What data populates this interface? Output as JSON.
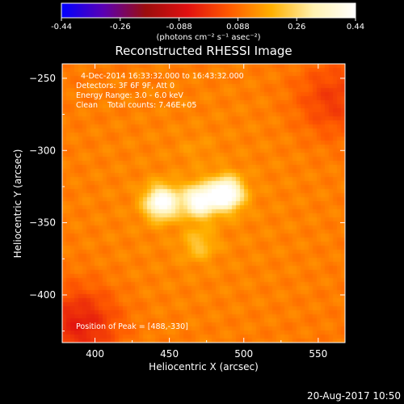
{
  "chart_data": {
    "type": "heatmap",
    "title": "Reconstructed RHESSI Image",
    "xlabel": "Heliocentric X (arcsec)",
    "ylabel": "Heliocentric Y (arcsec)",
    "xlim": [
      378,
      568
    ],
    "ylim": [
      -433,
      -240
    ],
    "xticks": [
      400,
      450,
      500,
      550
    ],
    "yticks": [
      -250,
      -300,
      -350,
      -400
    ],
    "grid": false,
    "colorbar": {
      "orientation": "horizontal",
      "position": "top",
      "ticks": [
        "-0.44",
        "-0.26",
        "-0.088",
        "0.088",
        "0.26",
        "0.44"
      ],
      "min": -0.44,
      "max": 0.44,
      "unit_label": "(photons cm⁻² s⁻¹ asec⁻²)",
      "colormap_stops": [
        "#0000ff",
        "#5a00b4",
        "#9b0d0d",
        "#e01010",
        "#ff5a00",
        "#ffb000",
        "#fff2b0",
        "#ffffff"
      ]
    },
    "annotations": [
      "4-Dec-2014 16:33:32.000 to 16:43:32.000",
      "Detectors: 3F 6F 9F, Att 0",
      "Energy Range: 3.0 - 6.0 keV",
      "Clean    Total counts: 7.46E+05",
      "Position of Peak = [488,-330]"
    ],
    "sources": [
      {
        "x": 445,
        "y": -336,
        "peak": 0.4
      },
      {
        "x": 470,
        "y": -335,
        "peak": 0.38
      },
      {
        "x": 488,
        "y": -330,
        "peak": 0.44
      },
      {
        "x": 470,
        "y": -365,
        "peak": 0.16
      },
      {
        "x": 468,
        "y": -300,
        "peak": 0.08
      }
    ],
    "background_level": 0.1,
    "dark_corners": [
      {
        "x": 390,
        "y": -420,
        "level": -0.05
      },
      {
        "x": 560,
        "y": -265,
        "level": 0.0
      }
    ]
  },
  "footer": {
    "timestamp": "20-Aug-2017 10:50"
  }
}
